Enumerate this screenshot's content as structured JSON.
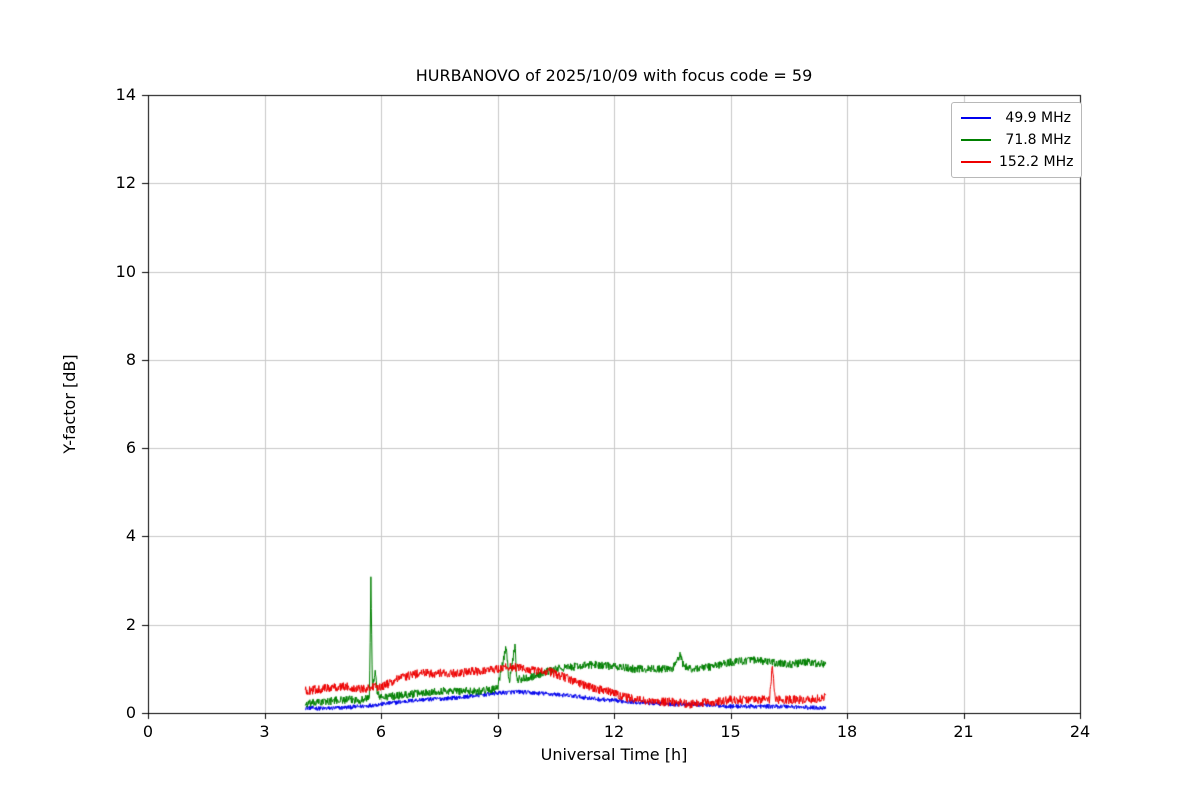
{
  "chart_data": {
    "type": "line",
    "title": "HURBANOVO of 2025/10/09 with focus code = 59",
    "xlabel": "Universal Time [h]",
    "ylabel": "Y-factor [dB]",
    "xlim": [
      0,
      24
    ],
    "ylim": [
      0,
      14
    ],
    "xticks": [
      0,
      3,
      6,
      9,
      12,
      15,
      18,
      21,
      24
    ],
    "yticks": [
      0,
      2,
      4,
      6,
      8,
      10,
      12,
      14
    ],
    "grid": true,
    "legend_position": "upper right",
    "series": [
      {
        "name": "49.9 MHz",
        "color": "#0000ee",
        "noise": 0.05,
        "points": [
          [
            4.05,
            0.12
          ],
          [
            4.5,
            0.1
          ],
          [
            5.0,
            0.12
          ],
          [
            5.5,
            0.15
          ],
          [
            6.0,
            0.2
          ],
          [
            6.5,
            0.25
          ],
          [
            7.0,
            0.3
          ],
          [
            7.5,
            0.32
          ],
          [
            8.0,
            0.35
          ],
          [
            8.5,
            0.4
          ],
          [
            9.0,
            0.45
          ],
          [
            9.5,
            0.48
          ],
          [
            10.0,
            0.45
          ],
          [
            10.5,
            0.42
          ],
          [
            11.0,
            0.38
          ],
          [
            11.5,
            0.32
          ],
          [
            12.0,
            0.28
          ],
          [
            12.5,
            0.25
          ],
          [
            13.0,
            0.22
          ],
          [
            13.5,
            0.2
          ],
          [
            14.0,
            0.2
          ],
          [
            14.5,
            0.18
          ],
          [
            15.0,
            0.15
          ],
          [
            15.5,
            0.15
          ],
          [
            16.0,
            0.15
          ],
          [
            16.5,
            0.15
          ],
          [
            17.0,
            0.12
          ],
          [
            17.45,
            0.12
          ]
        ]
      },
      {
        "name": "71.8 MHz",
        "color": "#008000",
        "noise": 0.09,
        "points": [
          [
            4.05,
            0.2
          ],
          [
            4.5,
            0.25
          ],
          [
            5.0,
            0.3
          ],
          [
            5.5,
            0.3
          ],
          [
            5.7,
            0.35
          ],
          [
            5.74,
            3.0
          ],
          [
            5.78,
            0.5
          ],
          [
            5.85,
            1.0
          ],
          [
            5.9,
            0.45
          ],
          [
            6.0,
            0.35
          ],
          [
            6.5,
            0.4
          ],
          [
            7.0,
            0.45
          ],
          [
            7.5,
            0.5
          ],
          [
            8.0,
            0.5
          ],
          [
            8.5,
            0.5
          ],
          [
            9.0,
            0.55
          ],
          [
            9.22,
            1.5
          ],
          [
            9.3,
            0.7
          ],
          [
            9.45,
            1.55
          ],
          [
            9.5,
            0.75
          ],
          [
            9.75,
            0.8
          ],
          [
            10.0,
            0.85
          ],
          [
            10.5,
            1.0
          ],
          [
            11.0,
            1.05
          ],
          [
            11.5,
            1.1
          ],
          [
            12.0,
            1.05
          ],
          [
            12.5,
            1.0
          ],
          [
            13.0,
            1.0
          ],
          [
            13.5,
            1.0
          ],
          [
            13.7,
            1.3
          ],
          [
            13.8,
            1.05
          ],
          [
            14.0,
            1.0
          ],
          [
            14.5,
            1.05
          ],
          [
            15.0,
            1.15
          ],
          [
            15.5,
            1.2
          ],
          [
            16.0,
            1.15
          ],
          [
            16.5,
            1.1
          ],
          [
            17.0,
            1.15
          ],
          [
            17.45,
            1.1
          ]
        ]
      },
      {
        "name": "152.2 MHz",
        "color": "#ee0000",
        "noise": 0.1,
        "points": [
          [
            4.05,
            0.5
          ],
          [
            4.5,
            0.55
          ],
          [
            5.0,
            0.6
          ],
          [
            5.5,
            0.55
          ],
          [
            6.0,
            0.6
          ],
          [
            6.3,
            0.7
          ],
          [
            6.5,
            0.8
          ],
          [
            7.0,
            0.9
          ],
          [
            7.5,
            0.9
          ],
          [
            8.0,
            0.9
          ],
          [
            8.5,
            0.95
          ],
          [
            9.0,
            1.0
          ],
          [
            9.3,
            1.05
          ],
          [
            9.7,
            1.0
          ],
          [
            10.0,
            0.95
          ],
          [
            10.3,
            0.95
          ],
          [
            10.6,
            0.85
          ],
          [
            10.9,
            0.75
          ],
          [
            11.2,
            0.65
          ],
          [
            11.5,
            0.55
          ],
          [
            11.8,
            0.5
          ],
          [
            12.0,
            0.45
          ],
          [
            12.3,
            0.35
          ],
          [
            12.6,
            0.3
          ],
          [
            13.0,
            0.25
          ],
          [
            13.5,
            0.25
          ],
          [
            14.0,
            0.2
          ],
          [
            14.5,
            0.25
          ],
          [
            15.0,
            0.3
          ],
          [
            15.5,
            0.3
          ],
          [
            16.0,
            0.3
          ],
          [
            16.08,
            1.1
          ],
          [
            16.15,
            0.3
          ],
          [
            16.5,
            0.3
          ],
          [
            17.0,
            0.3
          ],
          [
            17.45,
            0.35
          ]
        ]
      }
    ]
  }
}
